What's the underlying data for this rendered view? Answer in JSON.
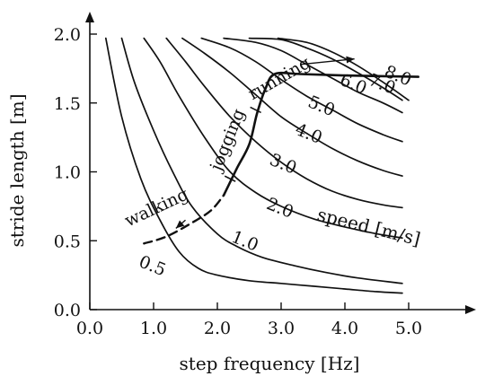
{
  "chart_data": {
    "type": "line",
    "title": "",
    "xlabel": "step frequency [Hz]",
    "ylabel": "stride length [m]",
    "xlim": [
      0,
      5.6
    ],
    "ylim": [
      0,
      2.0
    ],
    "x_ticks": [
      "0.0",
      "1.0",
      "2.0",
      "3.0",
      "4.0",
      "5.0"
    ],
    "y_ticks": [
      "0.0",
      "0.5",
      "1.0",
      "1.5",
      "2.0"
    ],
    "grid": false,
    "series": [
      {
        "name": "0.5",
        "points": [
          [
            0.25,
            1.97
          ],
          [
            0.5,
            1.4
          ],
          [
            0.8,
            0.95
          ],
          [
            1.1,
            0.65
          ],
          [
            1.4,
            0.42
          ],
          [
            1.7,
            0.3
          ],
          [
            2.0,
            0.25
          ],
          [
            2.5,
            0.21
          ],
          [
            3.0,
            0.19
          ],
          [
            3.5,
            0.17
          ],
          [
            4.0,
            0.15
          ],
          [
            4.5,
            0.13
          ],
          [
            4.9,
            0.12
          ]
        ]
      },
      {
        "name": "1.0",
        "points": [
          [
            0.5,
            1.97
          ],
          [
            0.7,
            1.65
          ],
          [
            1.0,
            1.3
          ],
          [
            1.3,
            1.0
          ],
          [
            1.6,
            0.75
          ],
          [
            2.0,
            0.55
          ],
          [
            2.3,
            0.46
          ],
          [
            2.7,
            0.38
          ],
          [
            3.2,
            0.32
          ],
          [
            3.7,
            0.27
          ],
          [
            4.2,
            0.23
          ],
          [
            4.9,
            0.19
          ]
        ]
      },
      {
        "name": "2.0",
        "points": [
          [
            0.85,
            1.97
          ],
          [
            1.1,
            1.8
          ],
          [
            1.4,
            1.55
          ],
          [
            1.8,
            1.25
          ],
          [
            2.2,
            1.0
          ],
          [
            2.6,
            0.85
          ],
          [
            3.0,
            0.75
          ],
          [
            3.5,
            0.66
          ],
          [
            4.0,
            0.6
          ],
          [
            4.5,
            0.55
          ],
          [
            4.9,
            0.52
          ]
        ]
      },
      {
        "name": "3.0",
        "points": [
          [
            1.2,
            1.97
          ],
          [
            1.5,
            1.8
          ],
          [
            1.8,
            1.62
          ],
          [
            2.2,
            1.4
          ],
          [
            2.6,
            1.22
          ],
          [
            3.0,
            1.07
          ],
          [
            3.4,
            0.95
          ],
          [
            3.8,
            0.86
          ],
          [
            4.2,
            0.8
          ],
          [
            4.6,
            0.76
          ],
          [
            4.9,
            0.74
          ]
        ]
      },
      {
        "name": "4.0",
        "points": [
          [
            1.45,
            1.97
          ],
          [
            1.8,
            1.86
          ],
          [
            2.2,
            1.72
          ],
          [
            2.6,
            1.56
          ],
          [
            3.0,
            1.4
          ],
          [
            3.4,
            1.28
          ],
          [
            3.8,
            1.17
          ],
          [
            4.2,
            1.08
          ],
          [
            4.6,
            1.01
          ],
          [
            4.9,
            0.97
          ]
        ]
      },
      {
        "name": "5.0",
        "points": [
          [
            1.75,
            1.97
          ],
          [
            2.2,
            1.9
          ],
          [
            2.6,
            1.8
          ],
          [
            3.0,
            1.67
          ],
          [
            3.4,
            1.55
          ],
          [
            3.8,
            1.45
          ],
          [
            4.2,
            1.35
          ],
          [
            4.6,
            1.27
          ],
          [
            4.9,
            1.22
          ]
        ]
      },
      {
        "name": "6.0",
        "points": [
          [
            2.1,
            1.97
          ],
          [
            2.6,
            1.94
          ],
          [
            3.0,
            1.88
          ],
          [
            3.4,
            1.78
          ],
          [
            3.8,
            1.68
          ],
          [
            4.2,
            1.58
          ],
          [
            4.6,
            1.5
          ],
          [
            4.9,
            1.43
          ]
        ]
      },
      {
        "name": "7.0",
        "points": [
          [
            2.5,
            1.97
          ],
          [
            3.0,
            1.96
          ],
          [
            3.4,
            1.9
          ],
          [
            3.8,
            1.82
          ],
          [
            4.2,
            1.72
          ],
          [
            4.6,
            1.61
          ],
          [
            4.9,
            1.52
          ]
        ]
      },
      {
        "name": "8.0",
        "points": [
          [
            2.95,
            1.97
          ],
          [
            3.4,
            1.94
          ],
          [
            3.8,
            1.87
          ],
          [
            4.2,
            1.77
          ],
          [
            4.6,
            1.65
          ],
          [
            5.0,
            1.52
          ]
        ]
      },
      {
        "name": "gait-path",
        "points": [
          [
            2.1,
            0.83
          ],
          [
            2.3,
            1.02
          ],
          [
            2.5,
            1.2
          ],
          [
            2.62,
            1.42
          ],
          [
            2.75,
            1.6
          ],
          [
            2.9,
            1.71
          ],
          [
            3.3,
            1.71
          ],
          [
            4.0,
            1.7
          ],
          [
            5.15,
            1.69
          ]
        ]
      }
    ],
    "gait_path_dashed": [
      [
        0.85,
        0.48
      ],
      [
        1.2,
        0.53
      ],
      [
        1.6,
        0.63
      ],
      [
        1.9,
        0.72
      ],
      [
        2.1,
        0.83
      ]
    ],
    "contour_labels": [
      {
        "text": "0.5",
        "x": 0.95,
        "y": 0.28
      },
      {
        "text": "1.0",
        "x": 2.4,
        "y": 0.46
      },
      {
        "text": "2.0",
        "x": 2.95,
        "y": 0.7
      },
      {
        "text": "3.0",
        "x": 3.0,
        "y": 1.02
      },
      {
        "text": "4.0",
        "x": 3.4,
        "y": 1.24
      },
      {
        "text": "5.0",
        "x": 3.6,
        "y": 1.44
      },
      {
        "text": "6.0",
        "x": 4.1,
        "y": 1.6
      },
      {
        "text": "7.0",
        "x": 4.55,
        "y": 1.6
      },
      {
        "text": "8.0",
        "x": 4.8,
        "y": 1.66
      }
    ],
    "gait_labels": [
      {
        "text": "walking",
        "x": 0.6,
        "y": 0.6,
        "angle": -25
      },
      {
        "text": "jogging",
        "x": 2.05,
        "y": 1.0,
        "angle": -68
      },
      {
        "text": "running",
        "x": 2.55,
        "y": 1.52,
        "angle": -30
      }
    ],
    "gait_ticks": [
      {
        "x": 2.2,
        "y": 0.95
      },
      {
        "x": 2.6,
        "y": 1.45
      }
    ],
    "gait_arrows": [
      {
        "from": [
          1.5,
          0.65
        ],
        "to": [
          1.35,
          0.59
        ]
      },
      {
        "from": [
          3.3,
          1.78
        ],
        "to": [
          4.15,
          1.82
        ]
      }
    ],
    "annotation": "speed [m/s]",
    "annotation_pos": {
      "x": 3.55,
      "y": 0.65,
      "angle": 14
    }
  }
}
